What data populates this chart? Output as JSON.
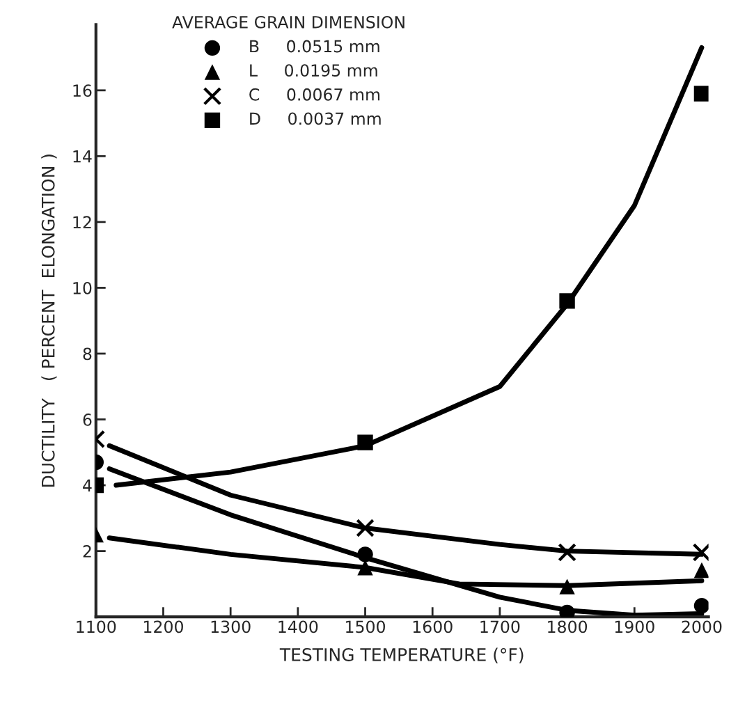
{
  "chart_data": {
    "type": "scatter",
    "xlabel": "TESTING TEMPERATURE (°F)",
    "ylabel": "DUCTILITY   ( PERCENT  ELONGATION )",
    "legend_title": "AVERAGE GRAIN DIMENSION",
    "x": [
      1100,
      1500,
      1800,
      2000
    ],
    "series": [
      {
        "name": "B     0.0515 mm",
        "color": "#000000",
        "marker": "circle",
        "values": [
          4.7,
          1.9,
          0.13,
          0.34
        ]
      },
      {
        "name": "L     0.0195 mm",
        "color": "#000000",
        "marker": "triangle",
        "values": [
          2.5,
          1.5,
          0.92,
          1.42
        ]
      },
      {
        "name": "C     0.0067 mm",
        "color": "#000000",
        "marker": "cross",
        "values": [
          5.4,
          2.7,
          1.96,
          1.96
        ]
      },
      {
        "name": "D     0.0037 mm",
        "color": "#000000",
        "marker": "square",
        "values": [
          4.0,
          5.3,
          9.6,
          15.9
        ]
      },
      {
        "type": "line",
        "color": "#000000",
        "x": [
          1120,
          1300,
          1500,
          1700,
          1800,
          1900,
          2000
        ],
        "values": [
          4.5,
          3.1,
          1.8,
          0.6,
          0.2,
          0.05,
          0.1
        ]
      },
      {
        "type": "line",
        "color": "#000000",
        "x": [
          1120,
          1300,
          1500,
          1640,
          1800,
          2000
        ],
        "values": [
          2.4,
          1.9,
          1.5,
          1.0,
          0.95,
          1.1
        ]
      },
      {
        "type": "line",
        "color": "#000000",
        "x": [
          1120,
          1300,
          1500,
          1700,
          1800,
          2000
        ],
        "values": [
          5.2,
          3.7,
          2.7,
          2.2,
          2.0,
          1.9
        ]
      },
      {
        "type": "line",
        "color": "#000000",
        "x": [
          1130,
          1300,
          1500,
          1700,
          1800,
          1900,
          2000
        ],
        "values": [
          4.0,
          4.4,
          5.2,
          7.0,
          9.5,
          12.5,
          17.3
        ]
      }
    ],
    "xlim": [
      1100,
      2010
    ],
    "xticks": [
      1100,
      1200,
      1300,
      1400,
      1500,
      1600,
      1700,
      1800,
      1900,
      2000
    ],
    "ylim": [
      0,
      18
    ],
    "yticks": [
      2,
      4,
      6,
      8,
      10,
      12,
      14,
      16
    ],
    "grid": false,
    "legend": "top left",
    "line_style": "solid"
  }
}
